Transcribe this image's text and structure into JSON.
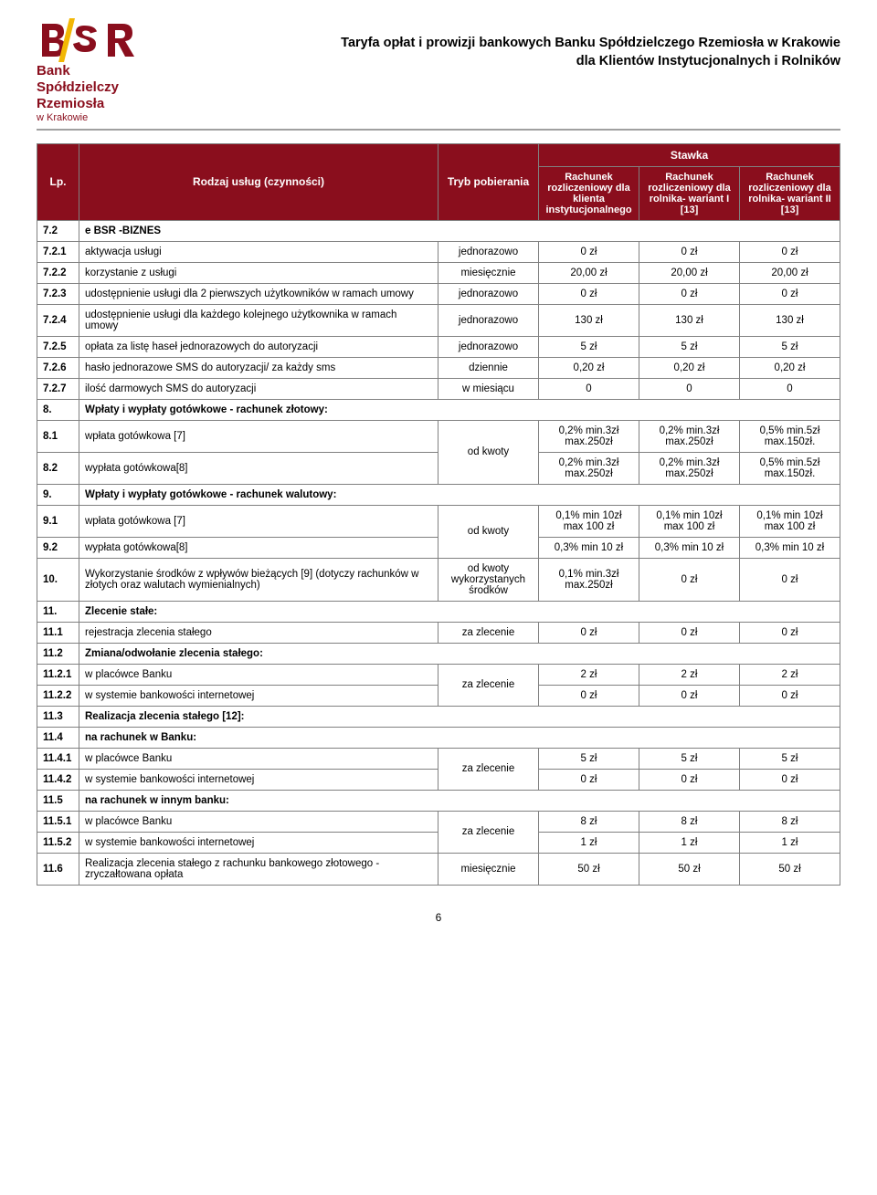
{
  "header": {
    "logo_line1": "Bank",
    "logo_line2": "Spółdzielczy",
    "logo_line3": "Rzemiosła",
    "logo_sub": "w Krakowie",
    "title_line1": "Taryfa opłat i prowizji bankowych Banku Spółdzielczego Rzemiosła w Krakowie",
    "title_line2": "dla Klientów Instytucjonalnych i Rolników"
  },
  "thead": {
    "lp": "Lp.",
    "rodzaj": "Rodzaj usług (czynności)",
    "tryb": "Tryb pobierania",
    "stawka": "Stawka",
    "col1": "Rachunek rozliczeniowy dla klienta instytucjonalnego",
    "col2": "Rachunek rozliczeniowy dla rolnika- wariant I [13]",
    "col3": "Rachunek rozliczeniowy dla rolnika- wariant II [13]"
  },
  "rows": [
    {
      "type": "section",
      "lp": "7.2",
      "desc": "e BSR -BIZNES"
    },
    {
      "type": "row",
      "lp": "7.2.1",
      "desc": "aktywacja usługi",
      "tryb": "jednorazowo",
      "v": [
        "0 zł",
        "0 zł",
        "0 zł"
      ]
    },
    {
      "type": "row",
      "lp": "7.2.2",
      "desc": "korzystanie z usługi",
      "tryb": "miesięcznie",
      "v": [
        "20,00 zł",
        "20,00 zł",
        "20,00 zł"
      ]
    },
    {
      "type": "row",
      "lp": "7.2.3",
      "desc": "udostępnienie usługi dla 2 pierwszych użytkowników w ramach umowy",
      "tryb": "jednorazowo",
      "v": [
        "0 zł",
        "0 zł",
        "0 zł"
      ]
    },
    {
      "type": "row",
      "lp": "7.2.4",
      "desc": "udostępnienie usługi dla każdego kolejnego użytkownika w ramach umowy",
      "tryb": "jednorazowo",
      "v": [
        "130 zł",
        "130 zł",
        "130 zł"
      ]
    },
    {
      "type": "row",
      "lp": "7.2.5",
      "desc": "opłata za listę haseł jednorazowych do autoryzacji",
      "tryb": "jednorazowo",
      "v": [
        "5 zł",
        "5 zł",
        "5 zł"
      ]
    },
    {
      "type": "row",
      "lp": "7.2.6",
      "desc": "hasło jednorazowe SMS do autoryzacji/ za każdy sms",
      "tryb": "dziennie",
      "v": [
        "0,20 zł",
        "0,20 zł",
        "0,20 zł"
      ]
    },
    {
      "type": "row",
      "lp": "7.2.7",
      "desc": "ilość darmowych SMS do autoryzacji",
      "tryb": "w miesiącu",
      "v": [
        "0",
        "0",
        "0"
      ]
    },
    {
      "type": "section",
      "lp": "8.",
      "desc": "Wpłaty i wypłaty gotówkowe - rachunek złotowy:"
    },
    {
      "type": "rowspan",
      "tryb": "od kwoty",
      "items": [
        {
          "lp": "8.1",
          "desc": "wpłata gotówkowa [7]",
          "v": [
            "0,2% min.3zł max.250zł",
            "0,2% min.3zł max.250zł",
            "0,5% min.5zł max.150zł."
          ]
        },
        {
          "lp": "8.2",
          "desc": "wypłata gotówkowa[8]",
          "v": [
            "0,2% min.3zł max.250zł",
            "0,2% min.3zł max.250zł",
            "0,5% min.5zł max.150zł."
          ]
        }
      ]
    },
    {
      "type": "section",
      "lp": "9.",
      "desc": "Wpłaty i wypłaty gotówkowe - rachunek walutowy:"
    },
    {
      "type": "rowspan",
      "tryb": "od kwoty",
      "items": [
        {
          "lp": "9.1",
          "desc": "wpłata gotówkowa [7]",
          "v": [
            "0,1% min 10zł max 100 zł",
            "0,1% min 10zł max 100 zł",
            "0,1% min 10zł max 100 zł"
          ]
        },
        {
          "lp": "9.2",
          "desc": "wypłata gotówkowa[8]",
          "v": [
            "0,3% min 10 zł",
            "0,3% min 10 zł",
            "0,3% min 10 zł"
          ]
        }
      ]
    },
    {
      "type": "row",
      "lp": "10.",
      "desc": "Wykorzystanie środków z wpływów bieżących [9] (dotyczy rachunków w złotych oraz walutach wymienialnych)",
      "tryb": "od kwoty wykorzystanych środków",
      "v": [
        "0,1% min.3zł max.250zł",
        "0 zł",
        "0 zł"
      ]
    },
    {
      "type": "section",
      "lp": "11.",
      "desc": "Zlecenie stałe:"
    },
    {
      "type": "row",
      "lp": "11.1",
      "desc": "rejestracja zlecenia stałego",
      "tryb": "za zlecenie",
      "v": [
        "0 zł",
        "0 zł",
        "0 zł"
      ]
    },
    {
      "type": "section",
      "lp": "11.2",
      "desc": "Zmiana/odwołanie zlecenia stałego:"
    },
    {
      "type": "rowspan",
      "tryb": "za zlecenie",
      "items": [
        {
          "lp": "11.2.1",
          "desc": "w placówce Banku",
          "v": [
            "2 zł",
            "2 zł",
            "2 zł"
          ]
        },
        {
          "lp": "11.2.2",
          "desc": "w systemie bankowości internetowej",
          "v": [
            "0 zł",
            "0 zł",
            "0 zł"
          ]
        }
      ]
    },
    {
      "type": "section",
      "lp": "11.3",
      "desc": "Realizacja zlecenia stałego [12]:"
    },
    {
      "type": "section",
      "lp": "11.4",
      "desc": "na rachunek w Banku:"
    },
    {
      "type": "rowspan",
      "tryb": "za zlecenie",
      "items": [
        {
          "lp": "11.4.1",
          "desc": "w placówce Banku",
          "v": [
            "5 zł",
            "5 zł",
            "5 zł"
          ]
        },
        {
          "lp": "11.4.2",
          "desc": "w systemie bankowości internetowej",
          "v": [
            "0 zł",
            "0 zł",
            "0 zł"
          ]
        }
      ]
    },
    {
      "type": "section",
      "lp": "11.5",
      "desc": "na rachunek w innym banku:"
    },
    {
      "type": "rowspan",
      "tryb": "za zlecenie",
      "items": [
        {
          "lp": "11.5.1",
          "desc": "w placówce Banku",
          "v": [
            "8 zł",
            "8 zł",
            "8 zł"
          ]
        },
        {
          "lp": "11.5.2",
          "desc": "w systemie bankowości internetowej",
          "v": [
            "1 zł",
            "1 zł",
            "1 zł"
          ]
        }
      ]
    },
    {
      "type": "row",
      "lp": "11.6",
      "desc": "Realizacja zlecenia stałego z rachunku bankowego złotowego - zryczałtowana opłata",
      "tryb": "miesięcznie",
      "v": [
        "50 zł",
        "50 zł",
        "50 zł"
      ]
    }
  ],
  "pageNumber": "6",
  "colors": {
    "brand": "#8a0e1d",
    "border": "#808080",
    "hr": "#a0a0a0"
  }
}
